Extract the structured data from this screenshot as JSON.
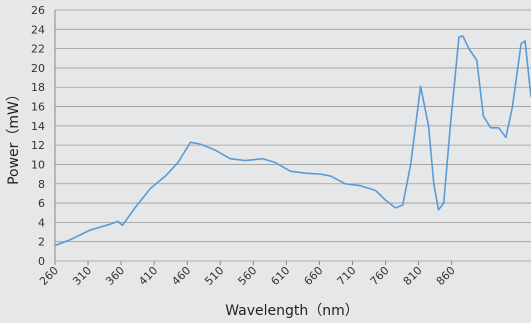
{
  "chart_data": {
    "type": "line",
    "x_label": "Wavelength（nm）",
    "y_label": "Power（mW）",
    "series": [
      {
        "color": "#5b9bd5",
        "x": [
          260,
          283,
          313,
          343,
          355,
          362,
          381,
          404,
          427,
          446,
          465,
          480,
          502,
          525,
          548,
          574,
          593,
          616,
          639,
          662,
          677,
          699,
          722,
          745,
          760,
          775,
          786,
          798,
          813,
          825,
          833,
          840,
          848,
          858,
          871,
          877,
          886,
          898,
          908,
          919,
          931,
          942,
          952,
          965,
          971,
          980
        ],
        "values": [
          1.6,
          2.2,
          3.2,
          3.8,
          4.1,
          3.7,
          5.5,
          7.5,
          8.8,
          10.2,
          12.3,
          12.1,
          11.5,
          10.6,
          10.4,
          10.6,
          10.2,
          9.3,
          9.1,
          9.0,
          8.8,
          8.0,
          7.8,
          7.3,
          6.3,
          5.5,
          5.8,
          10,
          18.1,
          14,
          8,
          5.3,
          6,
          14,
          23.2,
          23.3,
          22,
          20.8,
          15,
          13.8,
          13.8,
          12.8,
          16,
          22.5,
          22.8,
          17
        ]
      }
    ],
    "xlim": [
      260,
      980
    ],
    "xticks": [
      260,
      310,
      360,
      410,
      460,
      510,
      560,
      610,
      660,
      710,
      760,
      810,
      860
    ],
    "ylim": [
      0,
      26
    ],
    "yticks": [
      0,
      2,
      4,
      6,
      8,
      10,
      12,
      14,
      16,
      18,
      20,
      22,
      24,
      26
    ],
    "grid": true
  }
}
